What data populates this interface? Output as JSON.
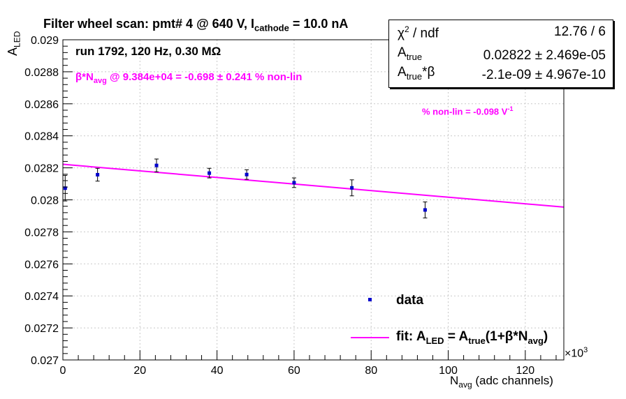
{
  "title": {
    "main": "Filter wheel scan: pmt#   4 @   640 V, I",
    "sub": "cathode",
    "tail": " = 10.0 nA"
  },
  "annotations": {
    "run": "run 1792, 120 Hz, 0.30 MΩ",
    "nonlin_beta": "β*N",
    "nonlin_sub": "avg",
    "nonlin_tail": " @ 9.384e+04 = -0.698 ± 0.241 % non-lin",
    "nonlin_volt": "% non-lin = -0.098 V",
    "nonlin_volt_exp": "-1"
  },
  "stats_box": {
    "chi2_label": "χ",
    "chi2_sup": "2",
    "chi2_tail": " / ndf",
    "chi2_value": "12.76 / 6",
    "atrue_label": "A",
    "atrue_sub": "true",
    "atrue_value": "0.02822 ± 2.469e-05",
    "atrue_beta_label": "A",
    "atrue_beta_sub": "true",
    "atrue_beta_tail": "*β",
    "atrue_beta_value": "-2.1e-09 ± 4.967e-10"
  },
  "legend": {
    "data_label": "data",
    "fit_prefix": "fit: A",
    "fit_sub1": "LED",
    "fit_mid": " = A",
    "fit_sub2": "true",
    "fit_mid2": "(1+β*N",
    "fit_sub3": "avg",
    "fit_tail": ")"
  },
  "axes": {
    "ylabel_main": "A",
    "ylabel_sub": "LED",
    "xlabel_main": "N",
    "xlabel_sub": "avg",
    "xlabel_tail": " (adc channels)",
    "x_multiplier_base": "×10",
    "x_multiplier_exp": "3"
  },
  "colors": {
    "data": "#0000cc",
    "fit": "#ff00ff",
    "grid": "#c8c8c8",
    "axis": "#000000"
  },
  "chart_data": {
    "type": "scatter",
    "x_unit_multiplier": 1000,
    "xlim": [
      0,
      130
    ],
    "ylim": [
      0.027,
      0.029
    ],
    "x_ticks": [
      0,
      20,
      40,
      60,
      80,
      100,
      120
    ],
    "y_ticks": [
      0.027,
      0.0272,
      0.0274,
      0.0276,
      0.0278,
      0.028,
      0.0282,
      0.0284,
      0.0286,
      0.0288,
      0.029
    ],
    "grid": true,
    "series": [
      {
        "name": "data",
        "kind": "points",
        "points": [
          {
            "x": 0.6,
            "y": 0.028073,
            "err": 8e-05
          },
          {
            "x": 9.0,
            "y": 0.028157,
            "err": 4e-05
          },
          {
            "x": 24.3,
            "y": 0.028215,
            "err": 4e-05
          },
          {
            "x": 38.0,
            "y": 0.028167,
            "err": 3e-05
          },
          {
            "x": 47.7,
            "y": 0.028158,
            "err": 3e-05
          },
          {
            "x": 60.0,
            "y": 0.028107,
            "err": 3e-05
          },
          {
            "x": 75.0,
            "y": 0.028075,
            "err": 5e-05
          },
          {
            "x": 94.0,
            "y": 0.027937,
            "err": 5e-05
          }
        ]
      },
      {
        "name": "fit: A_LED = A_true(1+β*N_avg)",
        "kind": "line",
        "x": [
          0,
          130
        ],
        "y": [
          0.028222,
          0.027955
        ]
      }
    ],
    "legend_placement": "bottom-right"
  }
}
